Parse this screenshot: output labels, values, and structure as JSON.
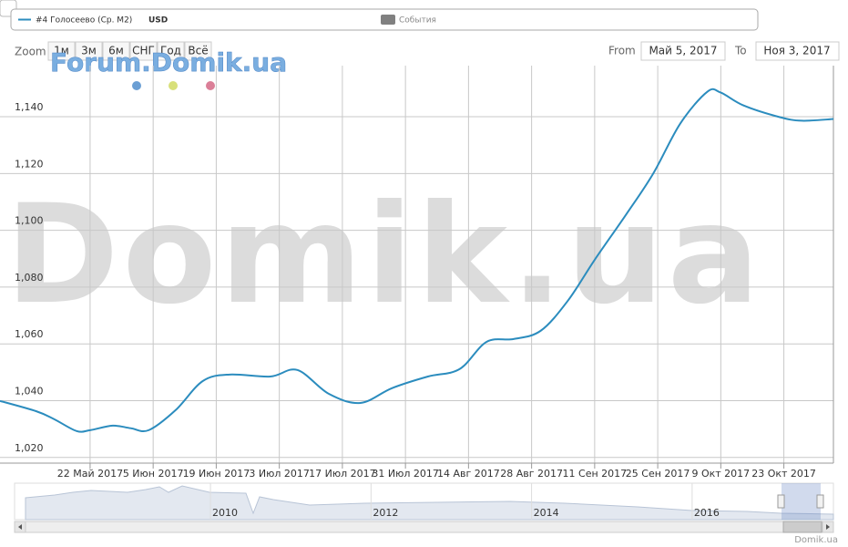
{
  "legend": {
    "unit": "USD",
    "events": "События"
  },
  "range_selector": {
    "zoom_label": "Zoom",
    "buttons": [
      "1м",
      "3м",
      "6м",
      "СНГ",
      "Год",
      "Всё"
    ],
    "from_label": "From",
    "from": "Май 5, 2017",
    "to_label": "To",
    "to": "Ноя 3, 2017"
  },
  "watermarks": {
    "forum": "Forum.Domik.ua",
    "main": "Domik.ua"
  },
  "credits": "Domik.ua",
  "chart_data": {
    "type": "line",
    "x": [
      "2017-05-02",
      "2017-05-10",
      "2017-05-14",
      "2017-05-19",
      "2017-05-22",
      "2017-05-27",
      "2017-05-31",
      "2017-06-04",
      "2017-06-10",
      "2017-06-16",
      "2017-06-22",
      "2017-07-01",
      "2017-07-07",
      "2017-07-14",
      "2017-07-21",
      "2017-07-28",
      "2017-08-05",
      "2017-08-12",
      "2017-08-18",
      "2017-08-24",
      "2017-08-30",
      "2017-09-05",
      "2017-09-11",
      "2017-09-18",
      "2017-09-24",
      "2017-09-30",
      "2017-10-06",
      "2017-10-09",
      "2017-10-14",
      "2017-10-22",
      "2017-10-27",
      "2017-11-03"
    ],
    "series": [
      {
        "name": "#4 Голосеево (Ср. М2)",
        "color": "#2b8cbe",
        "values": [
          1039.9,
          1036.3,
          1033.5,
          1029.3,
          1029.6,
          1031.2,
          1030.3,
          1029.6,
          1036.7,
          1046.9,
          1049.2,
          1048.5,
          1050.8,
          1042.4,
          1039.2,
          1044.4,
          1048.5,
          1051.1,
          1060.7,
          1061.7,
          1064.6,
          1075.1,
          1089.6,
          1105.6,
          1120,
          1137.6,
          1148.8,
          1148.5,
          1144,
          1139.9,
          1138.6,
          1139.2
        ]
      }
    ],
    "xlim": [
      "2017-05-02",
      "2017-11-03"
    ],
    "xticks": [
      {
        "value": "2017-05-22",
        "label": "22 Май 2017"
      },
      {
        "value": "2017-06-05",
        "label": "5 Июн 2017"
      },
      {
        "value": "2017-06-19",
        "label": "19 Июн 2017"
      },
      {
        "value": "2017-07-03",
        "label": "3 Июл 2017"
      },
      {
        "value": "2017-07-17",
        "label": "17 Июл 2017"
      },
      {
        "value": "2017-07-31",
        "label": "31 Июл 2017"
      },
      {
        "value": "2017-08-14",
        "label": "14 Авг 2017"
      },
      {
        "value": "2017-08-28",
        "label": "28 Авг 2017"
      },
      {
        "value": "2017-09-11",
        "label": "11 Сен 2017"
      },
      {
        "value": "2017-09-25",
        "label": "25 Сен 2017"
      },
      {
        "value": "2017-10-09",
        "label": "9 Окт 2017"
      },
      {
        "value": "2017-10-23",
        "label": "23 Окт 2017"
      }
    ],
    "ylim": [
      1018,
      1158
    ],
    "yticks": [
      {
        "value": 1020,
        "label": "1,020"
      },
      {
        "value": 1040,
        "label": "1,040"
      },
      {
        "value": 1060,
        "label": "1,060"
      },
      {
        "value": 1080,
        "label": "1,080"
      },
      {
        "value": 1100,
        "label": "1,100"
      },
      {
        "value": 1120,
        "label": "1,120"
      },
      {
        "value": 1140,
        "label": "1,140"
      }
    ],
    "grid": true
  },
  "navigator": {
    "xticks": [
      2010,
      2012,
      2014,
      2016
    ],
    "xlim": [
      2007.56,
      2017.76
    ]
  }
}
